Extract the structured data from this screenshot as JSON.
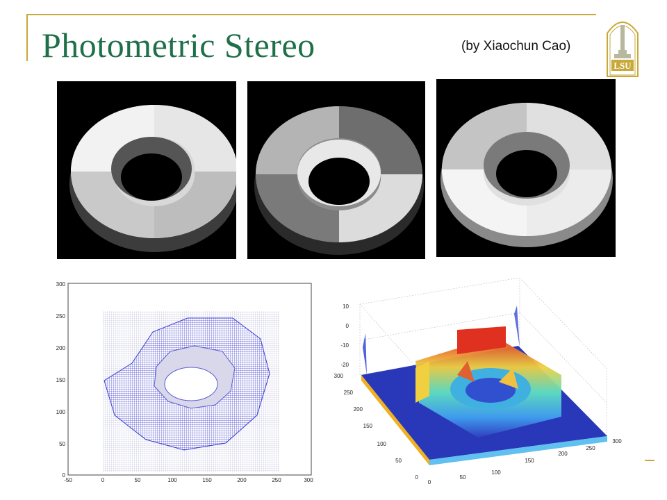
{
  "slide": {
    "title": "Photometric Stereo",
    "credit": "(by Xiaochun Cao)",
    "logo_text": "LSU",
    "accent_color": "#c8a838",
    "title_color": "#1f6f48"
  },
  "plot2d": {
    "x_ticks": [
      "-50",
      "0",
      "50",
      "100",
      "150",
      "200",
      "250",
      "300"
    ],
    "y_ticks": [
      "0",
      "50",
      "100",
      "150",
      "200",
      "250",
      "300"
    ]
  },
  "plot3d": {
    "z_ticks": [
      "10",
      "0",
      "-10",
      "-20"
    ],
    "y_ticks": [
      "300",
      "250",
      "200",
      "150",
      "100",
      "50",
      "0"
    ],
    "x_ticks": [
      "0",
      "50",
      "100",
      "150",
      "200",
      "250",
      "300"
    ]
  }
}
